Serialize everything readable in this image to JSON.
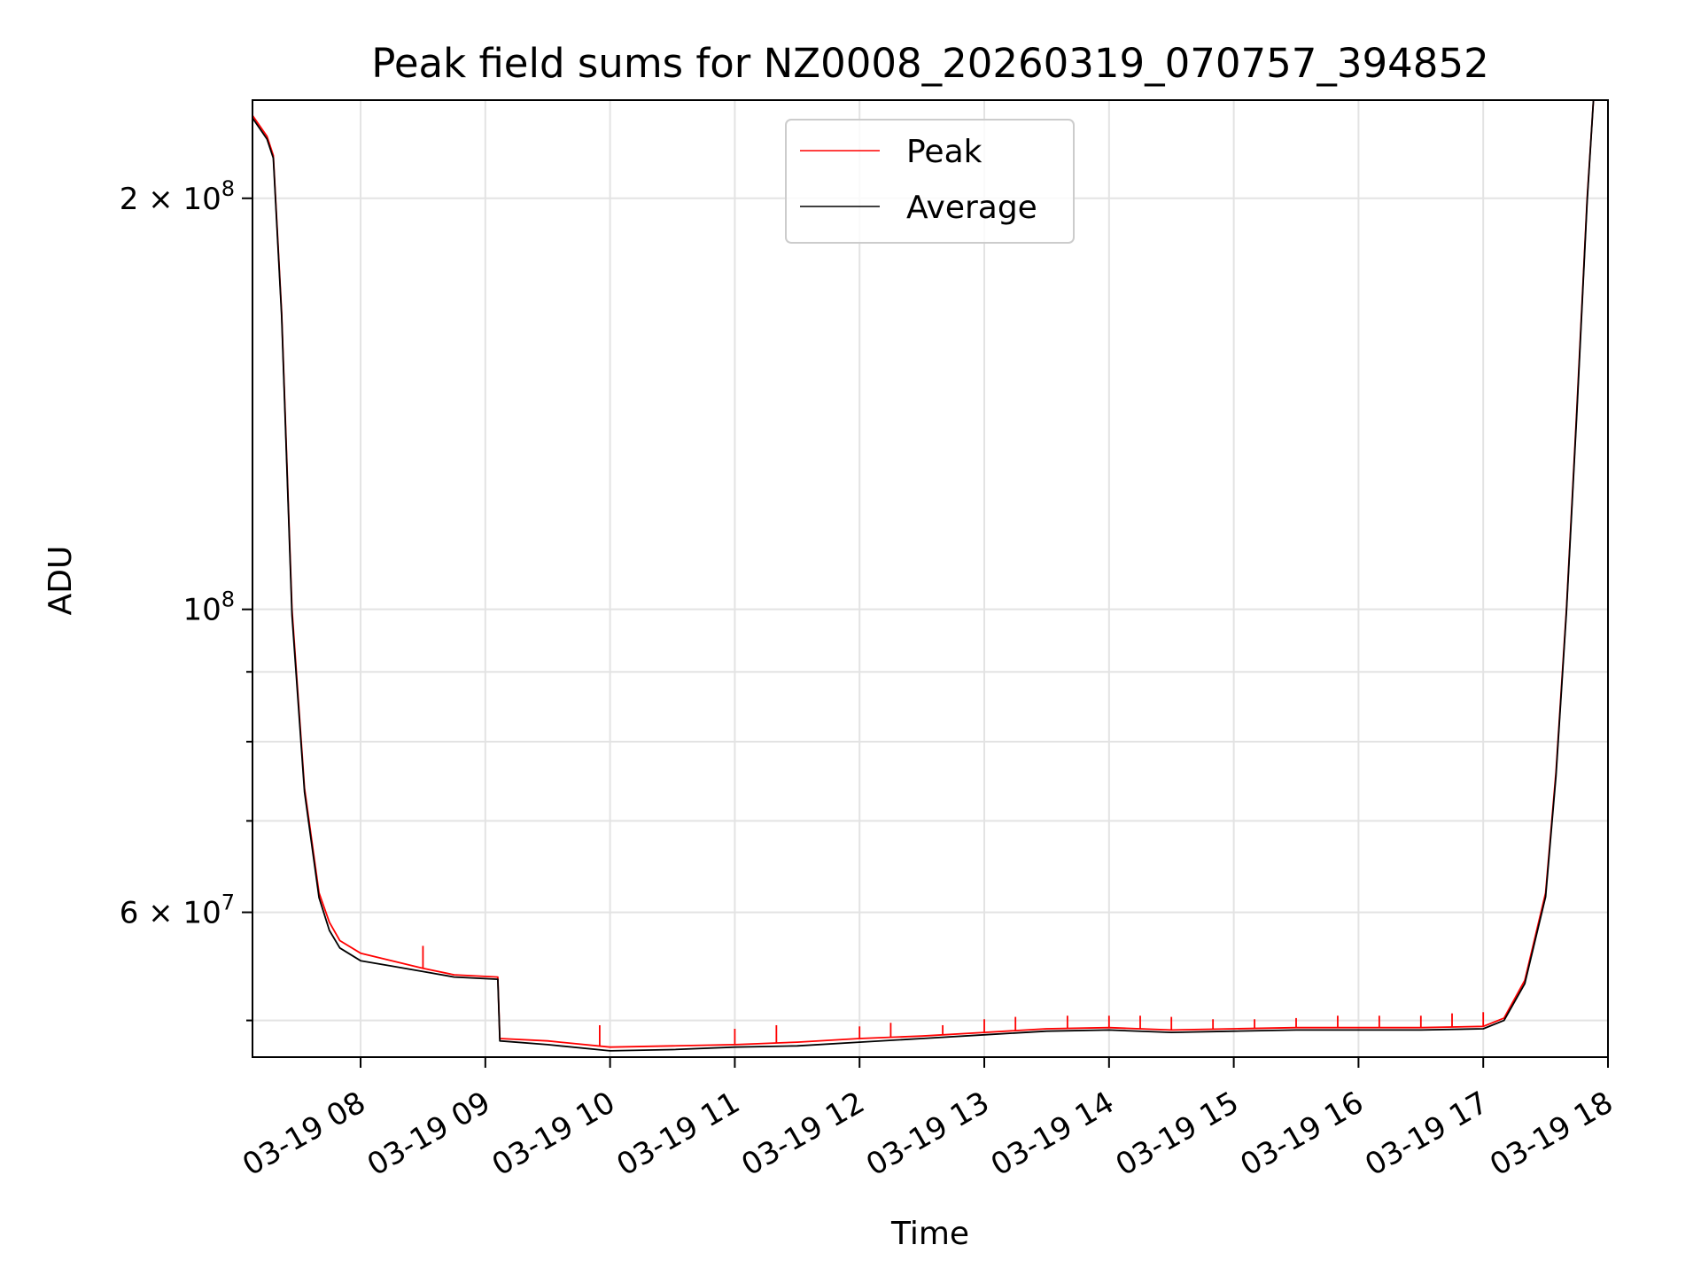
{
  "chart_data": {
    "type": "line",
    "title": "Peak field sums for NZ0008_20260319_070757_394852",
    "xlabel": "Time",
    "ylabel": "ADU",
    "yscale": "log",
    "xlim": [
      "03-19 07:08",
      "03-19 18:00"
    ],
    "ylim": [
      47000000,
      236000000
    ],
    "grid": true,
    "legend_position": "top-center",
    "x_ticks": [
      "03-19 08",
      "03-19 09",
      "03-19 10",
      "03-19 11",
      "03-19 12",
      "03-19 13",
      "03-19 14",
      "03-19 15",
      "03-19 16",
      "03-19 17",
      "03-19 18"
    ],
    "y_ticks": [
      {
        "value": 200000000,
        "mantissa": "2",
        "exponent": "8"
      },
      {
        "value": 100000000,
        "mantissa": "",
        "exponent": "8"
      },
      {
        "value": 60000000,
        "mantissa": "6",
        "exponent": "7"
      }
    ],
    "y_minor_ticks": [
      50000000,
      70000000,
      80000000,
      90000000
    ],
    "series": [
      {
        "name": "Peak",
        "color": "#ff0000",
        "x": [
          "03-19 07:08",
          "03-19 07:15",
          "03-19 07:18",
          "03-19 07:22",
          "03-19 07:27",
          "03-19 07:33",
          "03-19 07:40",
          "03-19 07:45",
          "03-19 07:50",
          "03-19 08:00",
          "03-19 08:15",
          "03-19 08:30",
          "03-19 08:45",
          "03-19 09:06",
          "03-19 09:07",
          "03-19 09:30",
          "03-19 10:00",
          "03-19 10:30",
          "03-19 11:00",
          "03-19 11:30",
          "03-19 12:00",
          "03-19 12:30",
          "03-19 13:00",
          "03-19 13:30",
          "03-19 14:00",
          "03-19 14:30",
          "03-19 15:00",
          "03-19 15:30",
          "03-19 16:00",
          "03-19 16:30",
          "03-19 17:00",
          "03-19 17:10",
          "03-19 17:20",
          "03-19 17:30",
          "03-19 17:35",
          "03-19 17:40",
          "03-19 17:45",
          "03-19 17:50",
          "03-19 17:53",
          "03-19 18:00"
        ],
        "y": [
          230000000,
          222000000,
          215000000,
          165000000,
          100000000,
          74000000,
          62000000,
          59000000,
          57200000,
          56000000,
          55300000,
          54600000,
          54000000,
          53800000,
          48500000,
          48300000,
          47800000,
          47900000,
          48000000,
          48200000,
          48500000,
          48700000,
          49000000,
          49300000,
          49400000,
          49200000,
          49300000,
          49400000,
          49400000,
          49400000,
          49500000,
          50200000,
          53500000,
          62000000,
          76000000,
          100000000,
          140000000,
          200000000,
          236000000,
          236000000
        ],
        "spikes": [
          {
            "x": "03-19 08:30",
            "y": 56700000
          },
          {
            "x": "03-19 09:55",
            "y": 49600000
          },
          {
            "x": "03-19 11:00",
            "y": 49300000
          },
          {
            "x": "03-19 11:20",
            "y": 49600000
          },
          {
            "x": "03-19 12:00",
            "y": 49500000
          },
          {
            "x": "03-19 12:15",
            "y": 49800000
          },
          {
            "x": "03-19 12:40",
            "y": 49600000
          },
          {
            "x": "03-19 13:00",
            "y": 50100000
          },
          {
            "x": "03-19 13:15",
            "y": 50300000
          },
          {
            "x": "03-19 13:40",
            "y": 50400000
          },
          {
            "x": "03-19 14:00",
            "y": 50400000
          },
          {
            "x": "03-19 14:15",
            "y": 50400000
          },
          {
            "x": "03-19 14:30",
            "y": 50300000
          },
          {
            "x": "03-19 14:50",
            "y": 50100000
          },
          {
            "x": "03-19 15:10",
            "y": 50100000
          },
          {
            "x": "03-19 15:30",
            "y": 50200000
          },
          {
            "x": "03-19 15:50",
            "y": 50400000
          },
          {
            "x": "03-19 16:10",
            "y": 50400000
          },
          {
            "x": "03-19 16:30",
            "y": 50400000
          },
          {
            "x": "03-19 16:45",
            "y": 50600000
          },
          {
            "x": "03-19 17:00",
            "y": 50700000
          }
        ]
      },
      {
        "name": "Average",
        "color": "#000000",
        "x": [
          "03-19 07:08",
          "03-19 07:15",
          "03-19 07:18",
          "03-19 07:22",
          "03-19 07:27",
          "03-19 07:33",
          "03-19 07:40",
          "03-19 07:45",
          "03-19 07:50",
          "03-19 08:00",
          "03-19 08:15",
          "03-19 08:30",
          "03-19 08:45",
          "03-19 09:06",
          "03-19 09:07",
          "03-19 09:30",
          "03-19 10:00",
          "03-19 10:30",
          "03-19 11:00",
          "03-19 11:30",
          "03-19 12:00",
          "03-19 12:30",
          "03-19 13:00",
          "03-19 13:30",
          "03-19 14:00",
          "03-19 14:30",
          "03-19 15:00",
          "03-19 15:30",
          "03-19 16:00",
          "03-19 16:30",
          "03-19 17:00",
          "03-19 17:10",
          "03-19 17:20",
          "03-19 17:30",
          "03-19 17:35",
          "03-19 17:40",
          "03-19 17:45",
          "03-19 17:50",
          "03-19 17:53",
          "03-19 18:00"
        ],
        "y": [
          229000000,
          221000000,
          214000000,
          164000000,
          99000000,
          73500000,
          61500000,
          58200000,
          56500000,
          55300000,
          54800000,
          54300000,
          53800000,
          53600000,
          48300000,
          48000000,
          47500000,
          47600000,
          47800000,
          47900000,
          48200000,
          48500000,
          48800000,
          49100000,
          49200000,
          49000000,
          49100000,
          49200000,
          49200000,
          49200000,
          49300000,
          50000000,
          53200000,
          61600000,
          75500000,
          99500000,
          139000000,
          199000000,
          236000000,
          236000000
        ]
      }
    ]
  }
}
